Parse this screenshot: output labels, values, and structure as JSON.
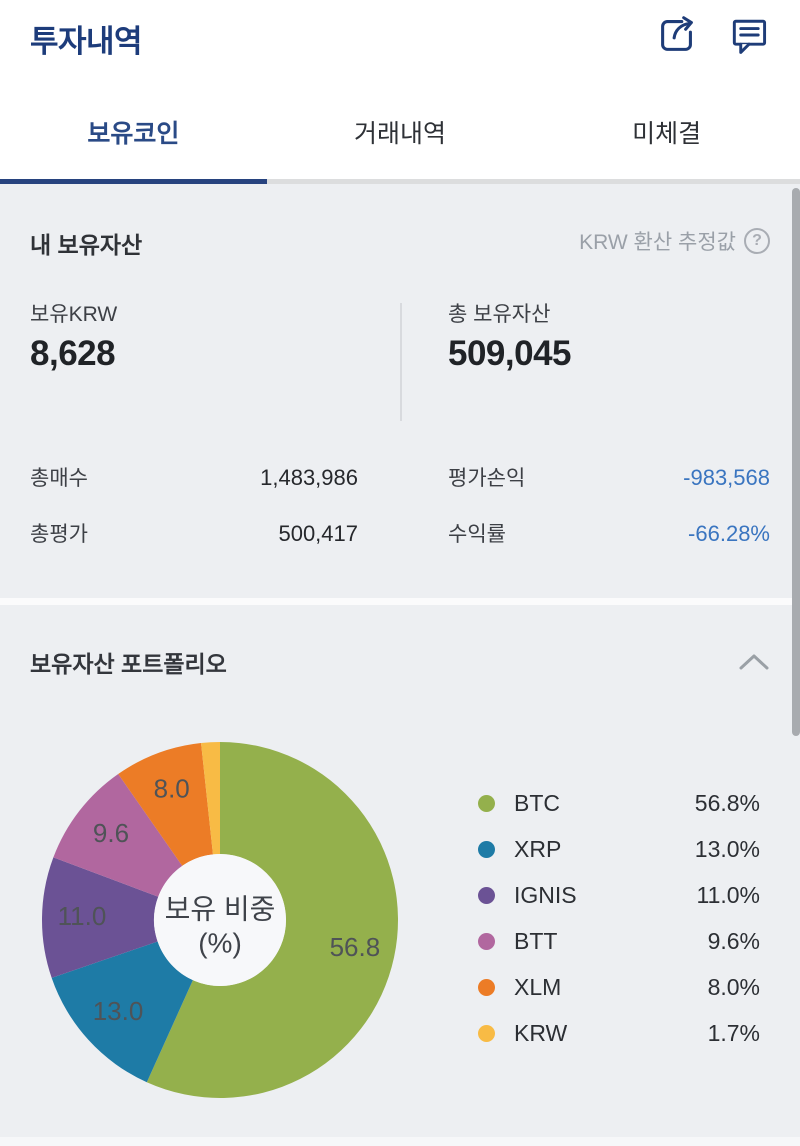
{
  "header": {
    "title": "투자내역"
  },
  "tabs": [
    {
      "label": "보유코인",
      "active": true
    },
    {
      "label": "거래내역",
      "active": false
    },
    {
      "label": "미체결",
      "active": false
    }
  ],
  "assets": {
    "heading": "내 보유자산",
    "estimate_note": "KRW 환산 추정값",
    "help_glyph": "?",
    "holding_krw": {
      "label": "보유KRW",
      "value": "8,628"
    },
    "total_assets": {
      "label": "총 보유자산",
      "value": "509,045"
    },
    "detail_rows": [
      {
        "label": "총매수",
        "value": "1,483,986",
        "negative": false
      },
      {
        "label": "평가손익",
        "value": "-983,568",
        "negative": true
      },
      {
        "label": "총평가",
        "value": "500,417",
        "negative": false
      },
      {
        "label": "수익률",
        "value": "-66.28%",
        "negative": true
      }
    ]
  },
  "portfolio": {
    "heading": "보유자산 포트폴리오",
    "center_line1": "보유 비중",
    "center_line2": "(%)"
  },
  "chart_data": {
    "type": "pie",
    "donut": true,
    "title": "보유자산 포트폴리오",
    "center_label": "보유 비중 (%)",
    "unit": "percent",
    "start_angle_deg": 0,
    "direction": "clockwise",
    "legend_position": "right",
    "label_threshold_pct": 3,
    "series": [
      {
        "name": "BTC",
        "value": 56.8,
        "pct": "56.8%",
        "color": "#94b04c"
      },
      {
        "name": "XRP",
        "value": 13.0,
        "pct": "13.0%",
        "color": "#1e7ba6"
      },
      {
        "name": "IGNIS",
        "value": 11.0,
        "pct": "11.0%",
        "color": "#6b5295"
      },
      {
        "name": "BTT",
        "value": 9.6,
        "pct": "9.6%",
        "color": "#b1679f"
      },
      {
        "name": "XLM",
        "value": 8.0,
        "pct": "8.0%",
        "color": "#ec7c26"
      },
      {
        "name": "KRW",
        "value": 1.7,
        "pct": "1.7%",
        "color": "#f8bb45"
      }
    ]
  },
  "colors": {
    "navy": "#1e3c78",
    "active_tab": "#2a4a86",
    "tab_underline": "#27437f",
    "loss_blue": "#3a75c0",
    "section_bg": "#edeff2",
    "muted_text": "#9aa0a8",
    "donut_center_bg": "#f7f8fa"
  }
}
